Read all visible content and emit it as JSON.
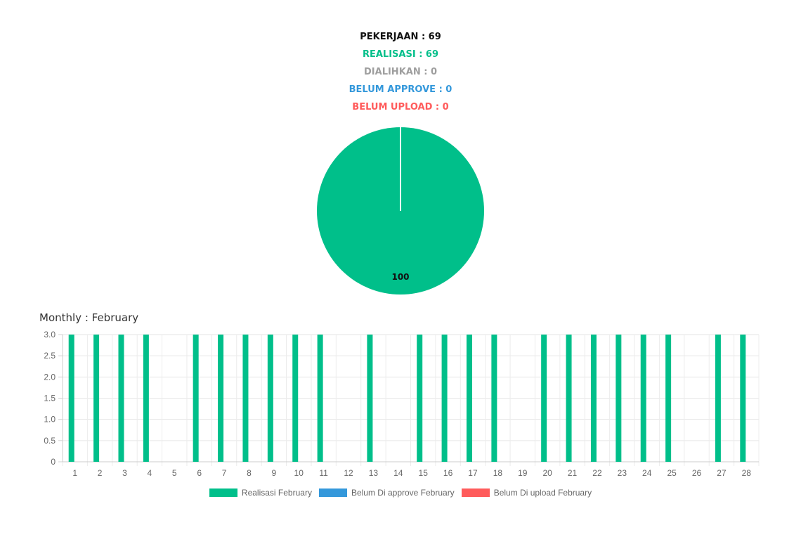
{
  "summary": {
    "pekerjaan": "PEKERJAAN : 69",
    "realisasi": "REALISASI : 69",
    "dialihkan": "DIALIHKAN : 0",
    "belum_approve": "BELUM APPROVE : 0",
    "belum_upload": "BELUM UPLOAD : 0"
  },
  "colors": {
    "pekerjaan": "#111111",
    "realisasi": "#00bf8a",
    "dialihkan": "#9e9e9e",
    "belum_approve": "#3498db",
    "belum_upload": "#ff5b5b"
  },
  "monthly_title": "Monthly : February",
  "chart_data": [
    {
      "type": "pie",
      "slices": [
        {
          "label": "Realisasi",
          "value": 100,
          "color": "#00bf8a"
        },
        {
          "label": "Dialihkan",
          "value": 0,
          "color": "#9e9e9e"
        },
        {
          "label": "Belum Approve",
          "value": 0,
          "color": "#3498db"
        },
        {
          "label": "Belum Upload",
          "value": 0,
          "color": "#ff5b5b"
        }
      ],
      "data_label": "100"
    },
    {
      "type": "bar",
      "title": "Monthly : February",
      "categories": [
        "1",
        "2",
        "3",
        "4",
        "5",
        "6",
        "7",
        "8",
        "9",
        "10",
        "11",
        "12",
        "13",
        "14",
        "15",
        "16",
        "17",
        "18",
        "19",
        "20",
        "21",
        "22",
        "23",
        "24",
        "25",
        "26",
        "27",
        "28"
      ],
      "series": [
        {
          "name": "Realisasi February",
          "color": "#00bf8a",
          "values": [
            3,
            3,
            3,
            3,
            0,
            3,
            3,
            3,
            3,
            3,
            3,
            0,
            3,
            0,
            3,
            3,
            3,
            3,
            0,
            3,
            3,
            3,
            3,
            3,
            3,
            0,
            3,
            3
          ]
        },
        {
          "name": "Belum Di approve February",
          "color": "#3498db",
          "values": [
            0,
            0,
            0,
            0,
            0,
            0,
            0,
            0,
            0,
            0,
            0,
            0,
            0,
            0,
            0,
            0,
            0,
            0,
            0,
            0,
            0,
            0,
            0,
            0,
            0,
            0,
            0,
            0
          ]
        },
        {
          "name": "Belum Di upload February",
          "color": "#ff5b5b",
          "values": [
            0,
            0,
            0,
            0,
            0,
            0,
            0,
            0,
            0,
            0,
            0,
            0,
            0,
            0,
            0,
            0,
            0,
            0,
            0,
            0,
            0,
            0,
            0,
            0,
            0,
            0,
            0,
            0
          ]
        }
      ],
      "yticks": [
        "0",
        "0.5",
        "1.0",
        "1.5",
        "2.0",
        "2.5",
        "3.0"
      ],
      "ylim": [
        0,
        3
      ],
      "grid": true,
      "legend_position": "bottom"
    }
  ]
}
